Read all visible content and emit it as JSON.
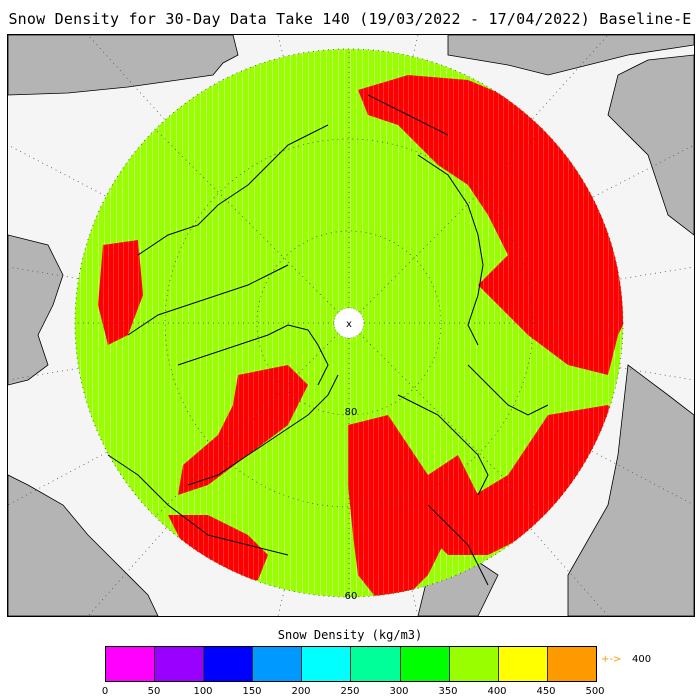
{
  "title": "Snow Density for 30-Day Data Take 140 (19/03/2022 - 17/04/2022) Baseline-E",
  "map": {
    "projection": "north-polar-stereographic",
    "lat_labels": [
      "80",
      "60"
    ],
    "pole_marker": "x",
    "colors": {
      "ocean": "#f5f5f5",
      "land": "#b4b4b4",
      "snow_green": "#99ff00",
      "high_density_red": "#ff0000",
      "coastline": "#000000"
    }
  },
  "colorbar": {
    "title": "Snow Density (kg/m3)",
    "ticks": [
      "0",
      "50",
      "100",
      "150",
      "200",
      "250",
      "300",
      "350",
      "400",
      "450",
      "500"
    ],
    "colors": [
      "#ff00ff",
      "#9900ff",
      "#0000ff",
      "#0099ff",
      "#00ffff",
      "#00ff99",
      "#00ff00",
      "#99ff00",
      "#ffff00",
      "#ff9900"
    ],
    "over_arrow": "+->",
    "over_label": "400"
  }
}
